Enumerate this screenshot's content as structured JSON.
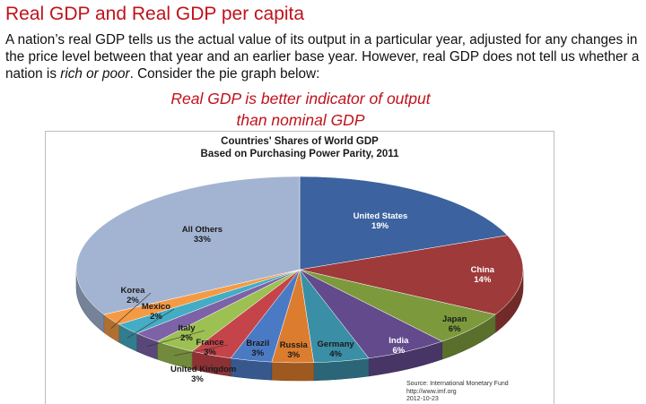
{
  "slide": {
    "title": "Real GDP and Real GDP per capita",
    "body_part1": "A nation’s real GDP tells us the actual value of its output in a particular year, adjusted for any changes in the price level between that year and an earlier base year. However, real GDP does not tell us whether a nation is ",
    "body_emph": "rich or poor",
    "body_part2": ". Consider the pie graph below:",
    "note_line1": "Real GDP is better indicator of output",
    "note_line2": "than nominal GDP"
  },
  "chart_data": {
    "type": "pie",
    "title_line1": "Countries' Shares of World GDP",
    "title_line2": "Based on Purchasing Power Parity, 2011",
    "categories": [
      "United States",
      "China",
      "Japan",
      "India",
      "Germany",
      "Russia",
      "Brazil",
      "United Kingdom",
      "France",
      "Italy",
      "Mexico",
      "Korea",
      "All Others"
    ],
    "values": [
      19,
      14,
      6,
      6,
      4,
      3,
      3,
      3,
      3,
      2,
      2,
      2,
      33
    ],
    "value_labels": [
      "19%",
      "14%",
      "6%",
      "6%",
      "4%",
      "3%",
      "3%",
      "3%",
      "3%",
      "2%",
      "2%",
      "2%",
      "33%"
    ],
    "colors": [
      "#3c62a0",
      "#9e3a39",
      "#7c9a3c",
      "#624a8c",
      "#3a8ea6",
      "#dc7c2e",
      "#4b7ac4",
      "#c4444a",
      "#9dc052",
      "#7d62a8",
      "#44acc4",
      "#f59a44",
      "#a3b4d2"
    ],
    "source_line1": "Source: International Monetary Fund",
    "source_line2": "http://www.imf.org",
    "source_line3": "2012-10-23"
  }
}
